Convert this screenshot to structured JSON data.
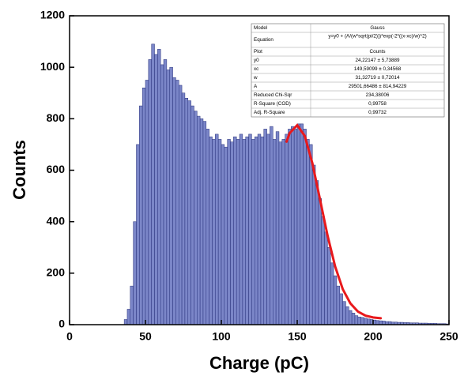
{
  "chart_data": {
    "type": "histogram",
    "xlabel": "Charge (pC)",
    "ylabel": "Counts",
    "xlim": [
      0,
      250
    ],
    "ylim": [
      0,
      1200
    ],
    "xticks": [
      0,
      50,
      100,
      150,
      200,
      250
    ],
    "yticks": [
      0,
      200,
      400,
      600,
      800,
      1000,
      1200
    ],
    "color": "#7b86c8",
    "edgecolor": "#27307a",
    "bins": [
      36,
      38,
      40,
      42,
      44,
      46,
      48,
      50,
      52,
      54,
      56,
      58,
      60,
      62,
      64,
      66,
      68,
      70,
      72,
      74,
      76,
      78,
      80,
      82,
      84,
      86,
      88,
      90,
      92,
      94,
      96,
      98,
      100,
      102,
      104,
      106,
      108,
      110,
      112,
      114,
      116,
      118,
      120,
      122,
      124,
      126,
      128,
      130,
      132,
      134,
      136,
      138,
      140,
      142,
      144,
      146,
      148,
      150,
      152,
      154,
      156,
      158,
      160,
      162,
      164,
      166,
      168,
      170,
      172,
      174,
      176,
      178,
      180,
      182,
      184,
      186,
      188,
      190,
      192,
      194,
      196,
      198,
      200,
      202,
      204,
      206,
      208,
      210,
      212,
      214,
      216,
      218,
      220,
      222,
      224,
      226,
      228,
      230,
      232,
      234,
      236,
      238,
      240,
      242,
      244,
      246,
      248,
      250
    ],
    "counts": [
      20,
      60,
      150,
      400,
      700,
      850,
      920,
      950,
      1030,
      1090,
      1050,
      1070,
      1010,
      1030,
      990,
      1000,
      960,
      950,
      930,
      900,
      880,
      870,
      850,
      830,
      810,
      800,
      790,
      760,
      730,
      720,
      740,
      720,
      700,
      690,
      720,
      710,
      730,
      720,
      740,
      720,
      730,
      740,
      720,
      730,
      740,
      730,
      760,
      740,
      770,
      720,
      750,
      710,
      720,
      740,
      760,
      770,
      760,
      780,
      780,
      760,
      720,
      700,
      620,
      560,
      490,
      420,
      360,
      300,
      240,
      190,
      150,
      120,
      90,
      70,
      55,
      45,
      35,
      30,
      28,
      25,
      22,
      20,
      18,
      16,
      15,
      14,
      12,
      12,
      10,
      10,
      9,
      9,
      8,
      8,
      7,
      7,
      7,
      6,
      6,
      6,
      5,
      5,
      5,
      4,
      4,
      4,
      3
    ],
    "fit": {
      "color": "#e8191c",
      "x": [
        143,
        145,
        150,
        155,
        160,
        165,
        170,
        175,
        180,
        185,
        190,
        195,
        200,
        205
      ],
      "values": [
        711,
        744,
        775,
        733,
        627,
        487,
        346,
        226,
        138,
        83,
        51,
        35,
        28,
        25
      ]
    },
    "fit_table": {
      "rows": [
        [
          "Model",
          "Gauss"
        ],
        [
          "Equation",
          "y=y0 + (A/(w*sqrt(pi/2)))*exp(-2*((x-xc)/w)^2)"
        ],
        [
          "Plot",
          "Counts"
        ],
        [
          "y0",
          "24,22147 ± 5,73889"
        ],
        [
          "xc",
          "149,59099 ± 0,34568"
        ],
        [
          "w",
          "31,32719 ± 0,72014"
        ],
        [
          "A",
          "29501,66486 ± 814,94229"
        ],
        [
          "Reduced Chi-Sqr",
          "234,38006"
        ],
        [
          "R-Square (COD)",
          "0,99758"
        ],
        [
          "Adj. R-Square",
          "0,99732"
        ]
      ]
    }
  }
}
